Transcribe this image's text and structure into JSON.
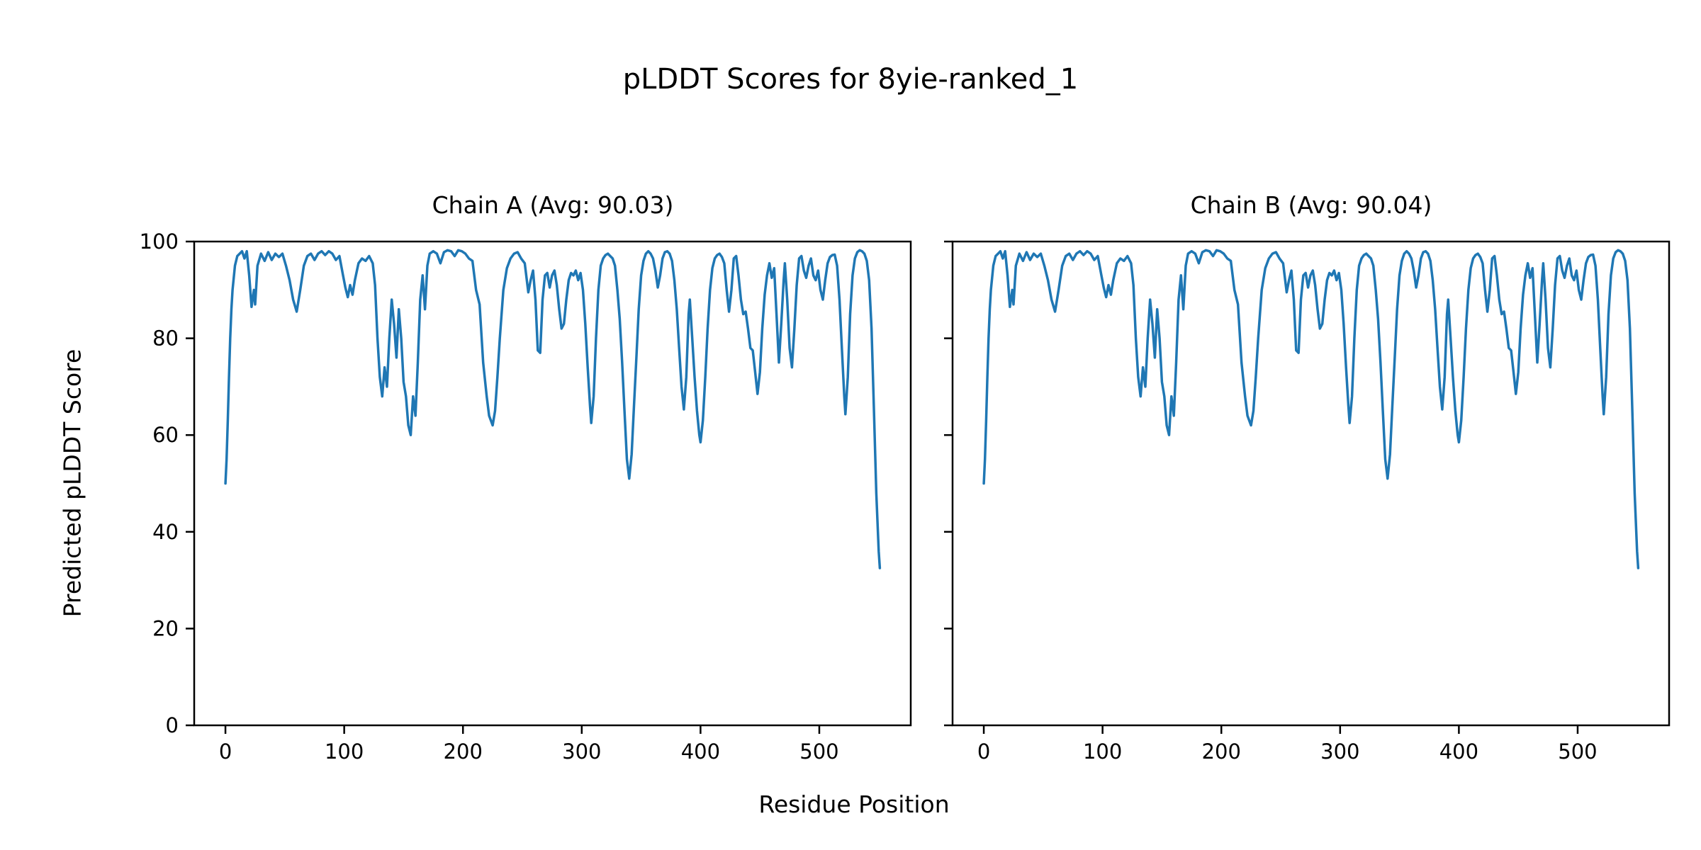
{
  "figure": {
    "background": "#ffffff"
  },
  "chart_data": {
    "type": "line",
    "suptitle": "pLDDT Scores for 8yie-ranked_1",
    "xlabel": "Residue Position",
    "ylabel": "Predicted pLDDT Score",
    "line_color": "#1f77b4",
    "axis_color": "#000000",
    "grid": false,
    "legend_position": "none",
    "xlim": [
      -26.3,
      577.0
    ],
    "ylim": [
      0,
      100
    ],
    "x_ticks": [
      0,
      100,
      200,
      300,
      400,
      500
    ],
    "y_ticks": [
      0,
      20,
      40,
      60,
      80,
      100
    ],
    "panels": [
      {
        "title": "Chain A (Avg: 90.03)",
        "name": "Chain A",
        "avg_plddt": 90.03
      },
      {
        "title": "Chain B (Avg: 90.04)",
        "name": "Chain B",
        "avg_plddt": 90.04
      }
    ],
    "series_note": "Both chains are visually identical traces of pLDDT vs residue position; points are [residue, pLDDT] estimates read from the plot and are shared by both panels.",
    "points": [
      [
        0,
        50
      ],
      [
        1,
        55
      ],
      [
        2,
        63
      ],
      [
        3,
        72
      ],
      [
        4,
        80
      ],
      [
        5,
        86
      ],
      [
        6,
        90
      ],
      [
        8,
        95
      ],
      [
        10,
        97
      ],
      [
        12,
        97.5
      ],
      [
        14,
        98
      ],
      [
        16,
        96.5
      ],
      [
        18,
        98
      ],
      [
        20,
        93
      ],
      [
        22,
        86.5
      ],
      [
        24,
        90
      ],
      [
        25,
        87
      ],
      [
        27,
        95
      ],
      [
        30,
        97.5
      ],
      [
        33,
        96
      ],
      [
        36,
        97.8
      ],
      [
        39,
        96.2
      ],
      [
        42,
        97.5
      ],
      [
        45,
        96.8
      ],
      [
        48,
        97.5
      ],
      [
        51,
        95
      ],
      [
        54,
        92
      ],
      [
        57,
        88
      ],
      [
        60,
        85.5
      ],
      [
        63,
        90
      ],
      [
        66,
        95
      ],
      [
        69,
        97
      ],
      [
        72,
        97.5
      ],
      [
        75,
        96.2
      ],
      [
        78,
        97.5
      ],
      [
        81,
        98
      ],
      [
        84,
        97.2
      ],
      [
        87,
        98
      ],
      [
        90,
        97.5
      ],
      [
        93,
        96.2
      ],
      [
        96,
        97
      ],
      [
        99,
        93
      ],
      [
        101,
        90.5
      ],
      [
        103,
        88.5
      ],
      [
        105,
        91
      ],
      [
        107,
        89
      ],
      [
        109,
        92
      ],
      [
        112,
        95.5
      ],
      [
        115,
        96.5
      ],
      [
        118,
        96
      ],
      [
        121,
        97
      ],
      [
        124,
        95.5
      ],
      [
        126,
        91
      ],
      [
        128,
        80
      ],
      [
        130,
        72
      ],
      [
        132,
        68
      ],
      [
        134,
        74
      ],
      [
        136,
        70
      ],
      [
        138,
        80
      ],
      [
        140,
        88
      ],
      [
        142,
        83
      ],
      [
        144,
        76
      ],
      [
        146,
        86
      ],
      [
        148,
        80
      ],
      [
        150,
        71
      ],
      [
        152,
        68
      ],
      [
        154,
        62
      ],
      [
        156,
        60
      ],
      [
        158,
        68
      ],
      [
        160,
        64
      ],
      [
        162,
        75
      ],
      [
        164,
        88
      ],
      [
        166,
        93
      ],
      [
        168,
        86
      ],
      [
        170,
        95
      ],
      [
        172,
        97.5
      ],
      [
        175,
        98
      ],
      [
        178,
        97.5
      ],
      [
        181,
        95.5
      ],
      [
        184,
        97.8
      ],
      [
        187,
        98.2
      ],
      [
        190,
        98
      ],
      [
        193,
        97
      ],
      [
        196,
        98.2
      ],
      [
        199,
        98
      ],
      [
        202,
        97.5
      ],
      [
        205,
        96.5
      ],
      [
        208,
        96
      ],
      [
        211,
        90
      ],
      [
        214,
        87
      ],
      [
        217,
        75
      ],
      [
        220,
        68
      ],
      [
        222,
        64
      ],
      [
        225,
        62
      ],
      [
        227,
        65
      ],
      [
        229,
        72
      ],
      [
        231,
        80
      ],
      [
        234,
        90
      ],
      [
        237,
        94.5
      ],
      [
        240,
        96.5
      ],
      [
        243,
        97.5
      ],
      [
        246,
        97.8
      ],
      [
        249,
        96.5
      ],
      [
        252,
        95.5
      ],
      [
        255,
        89.5
      ],
      [
        257,
        92
      ],
      [
        259,
        94
      ],
      [
        261,
        88
      ],
      [
        263,
        77.5
      ],
      [
        265,
        77
      ],
      [
        267,
        88
      ],
      [
        269,
        93
      ],
      [
        271,
        93.5
      ],
      [
        273,
        90.5
      ],
      [
        275,
        93
      ],
      [
        277,
        94
      ],
      [
        279,
        91
      ],
      [
        281,
        86
      ],
      [
        283,
        82
      ],
      [
        285,
        83
      ],
      [
        287,
        88
      ],
      [
        289,
        92
      ],
      [
        291,
        93.5
      ],
      [
        293,
        93
      ],
      [
        295,
        94
      ],
      [
        297,
        92
      ],
      [
        299,
        93.5
      ],
      [
        301,
        90
      ],
      [
        303,
        83
      ],
      [
        305,
        74
      ],
      [
        307,
        66
      ],
      [
        308,
        62.5
      ],
      [
        310,
        68
      ],
      [
        312,
        80
      ],
      [
        314,
        90
      ],
      [
        316,
        95
      ],
      [
        318,
        96.5
      ],
      [
        320,
        97.2
      ],
      [
        322,
        97.5
      ],
      [
        324,
        97
      ],
      [
        326,
        96.5
      ],
      [
        328,
        95
      ],
      [
        330,
        90
      ],
      [
        332,
        84
      ],
      [
        334,
        75
      ],
      [
        336,
        65
      ],
      [
        338,
        55
      ],
      [
        340,
        51
      ],
      [
        342,
        56
      ],
      [
        344,
        66
      ],
      [
        346,
        76
      ],
      [
        348,
        86
      ],
      [
        350,
        93
      ],
      [
        352,
        96
      ],
      [
        354,
        97.5
      ],
      [
        356,
        98
      ],
      [
        358,
        97.5
      ],
      [
        360,
        96.5
      ],
      [
        362,
        94
      ],
      [
        364,
        90.5
      ],
      [
        366,
        93
      ],
      [
        368,
        96.5
      ],
      [
        370,
        97.8
      ],
      [
        372,
        98
      ],
      [
        374,
        97.5
      ],
      [
        376,
        96
      ],
      [
        378,
        92
      ],
      [
        380,
        86
      ],
      [
        382,
        78
      ],
      [
        384,
        70
      ],
      [
        386,
        65.3
      ],
      [
        388,
        72
      ],
      [
        390,
        85
      ],
      [
        391,
        88
      ],
      [
        393,
        80
      ],
      [
        395,
        72
      ],
      [
        397,
        65
      ],
      [
        399,
        60
      ],
      [
        400,
        58.5
      ],
      [
        402,
        63
      ],
      [
        404,
        72
      ],
      [
        406,
        82
      ],
      [
        408,
        90
      ],
      [
        410,
        94.5
      ],
      [
        412,
        96.5
      ],
      [
        414,
        97.2
      ],
      [
        416,
        97.5
      ],
      [
        418,
        96.8
      ],
      [
        420,
        95.5
      ],
      [
        422,
        90
      ],
      [
        424,
        85.5
      ],
      [
        426,
        90
      ],
      [
        428,
        96.5
      ],
      [
        430,
        97
      ],
      [
        432,
        93
      ],
      [
        434,
        88
      ],
      [
        436,
        85
      ],
      [
        438,
        85.5
      ],
      [
        440,
        82
      ],
      [
        442,
        78
      ],
      [
        444,
        77.5
      ],
      [
        446,
        73
      ],
      [
        448,
        68.5
      ],
      [
        450,
        73
      ],
      [
        452,
        82
      ],
      [
        454,
        89
      ],
      [
        456,
        93
      ],
      [
        458,
        95.5
      ],
      [
        460,
        92.5
      ],
      [
        462,
        94.5
      ],
      [
        464,
        85
      ],
      [
        466,
        75
      ],
      [
        468,
        83
      ],
      [
        470,
        92
      ],
      [
        471,
        95.5
      ],
      [
        473,
        88
      ],
      [
        475,
        78
      ],
      [
        477,
        74
      ],
      [
        479,
        82
      ],
      [
        481,
        91
      ],
      [
        483,
        96.5
      ],
      [
        485,
        97
      ],
      [
        487,
        94
      ],
      [
        489,
        92.5
      ],
      [
        491,
        95
      ],
      [
        493,
        96.5
      ],
      [
        495,
        93
      ],
      [
        497,
        92
      ],
      [
        499,
        94
      ],
      [
        501,
        90
      ],
      [
        503,
        88
      ],
      [
        505,
        92
      ],
      [
        507,
        95.5
      ],
      [
        509,
        96.8
      ],
      [
        511,
        97.2
      ],
      [
        513,
        97.3
      ],
      [
        515,
        95
      ],
      [
        517,
        88
      ],
      [
        519,
        78
      ],
      [
        521,
        68
      ],
      [
        522,
        64.3
      ],
      [
        524,
        72
      ],
      [
        526,
        85
      ],
      [
        528,
        93
      ],
      [
        530,
        96.5
      ],
      [
        532,
        97.8
      ],
      [
        534,
        98.2
      ],
      [
        536,
        98
      ],
      [
        538,
        97.5
      ],
      [
        540,
        96
      ],
      [
        542,
        92
      ],
      [
        544,
        82
      ],
      [
        546,
        65
      ],
      [
        548,
        48
      ],
      [
        550,
        36
      ],
      [
        551,
        32.5
      ]
    ]
  }
}
